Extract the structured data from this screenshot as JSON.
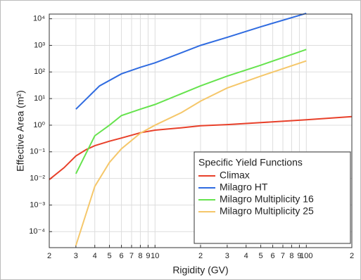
{
  "chart_data": {
    "type": "line",
    "xlabel": "Rigidity (GV)",
    "ylabel": "Effective Area (m²)",
    "log_x": true,
    "log_y": true,
    "grid": true,
    "legend_title": "Specific Yield Functions",
    "legend_position": "lower right",
    "xlim": [
      2,
      200
    ],
    "ylim": [
      2.5e-05,
      15000
    ],
    "xticks": [
      2,
      3,
      4,
      5,
      6,
      7,
      8,
      9,
      10,
      {
        "value": 20,
        "label": "2"
      },
      {
        "value": 30,
        "label": "3"
      },
      {
        "value": 40,
        "label": "4"
      },
      {
        "value": 50,
        "label": "5"
      },
      {
        "value": 60,
        "label": "6"
      },
      {
        "value": 70,
        "label": "7"
      },
      {
        "value": 80,
        "label": "8"
      },
      {
        "value": 90,
        "label": "9"
      },
      100,
      {
        "value": 200,
        "label": "2"
      }
    ],
    "yticks": [
      {
        "value": 0.0001,
        "label": "10⁻⁴"
      },
      {
        "value": 0.001,
        "label": "10⁻³"
      },
      {
        "value": 0.01,
        "label": "10⁻²"
      },
      {
        "value": 0.1,
        "label": "10⁻¹"
      },
      {
        "value": 1,
        "label": "10⁰"
      },
      {
        "value": 10,
        "label": "10¹"
      },
      {
        "value": 100,
        "label": "10²"
      },
      {
        "value": 1000,
        "label": "10³"
      },
      {
        "value": 10000,
        "label": "10⁴"
      }
    ],
    "series": [
      {
        "name": "Climax",
        "color": "#e8402a",
        "x": [
          2,
          2.5,
          3,
          3.5,
          4,
          5,
          6,
          7,
          8,
          10,
          15,
          20,
          30,
          50,
          100,
          200
        ],
        "values": [
          0.009,
          0.025,
          0.07,
          0.12,
          0.17,
          0.25,
          0.33,
          0.42,
          0.52,
          0.65,
          0.8,
          0.95,
          1.05,
          1.25,
          1.6,
          2.1
        ]
      },
      {
        "name": "Milagro HT",
        "color": "#2f6be0",
        "x": [
          3,
          4.3,
          6,
          8,
          10,
          20,
          30,
          50,
          100
        ],
        "values": [
          4,
          30,
          85,
          150,
          220,
          1000,
          2000,
          5000,
          16000
        ]
      },
      {
        "name": "Milagro Multiplicity 16",
        "color": "#66e34e",
        "x": [
          3,
          4,
          5,
          6,
          8,
          10,
          20,
          30,
          50,
          100
        ],
        "values": [
          0.015,
          0.4,
          1,
          2.3,
          4,
          6,
          30,
          70,
          180,
          700
        ]
      },
      {
        "name": "Milagro Multiplicity 25",
        "color": "#f5c76a",
        "x": [
          3,
          4,
          5,
          6,
          8,
          10,
          15,
          20,
          30,
          50,
          100
        ],
        "values": [
          3e-05,
          0.005,
          0.04,
          0.13,
          0.5,
          1,
          3,
          8,
          25,
          70,
          260
        ]
      }
    ]
  }
}
